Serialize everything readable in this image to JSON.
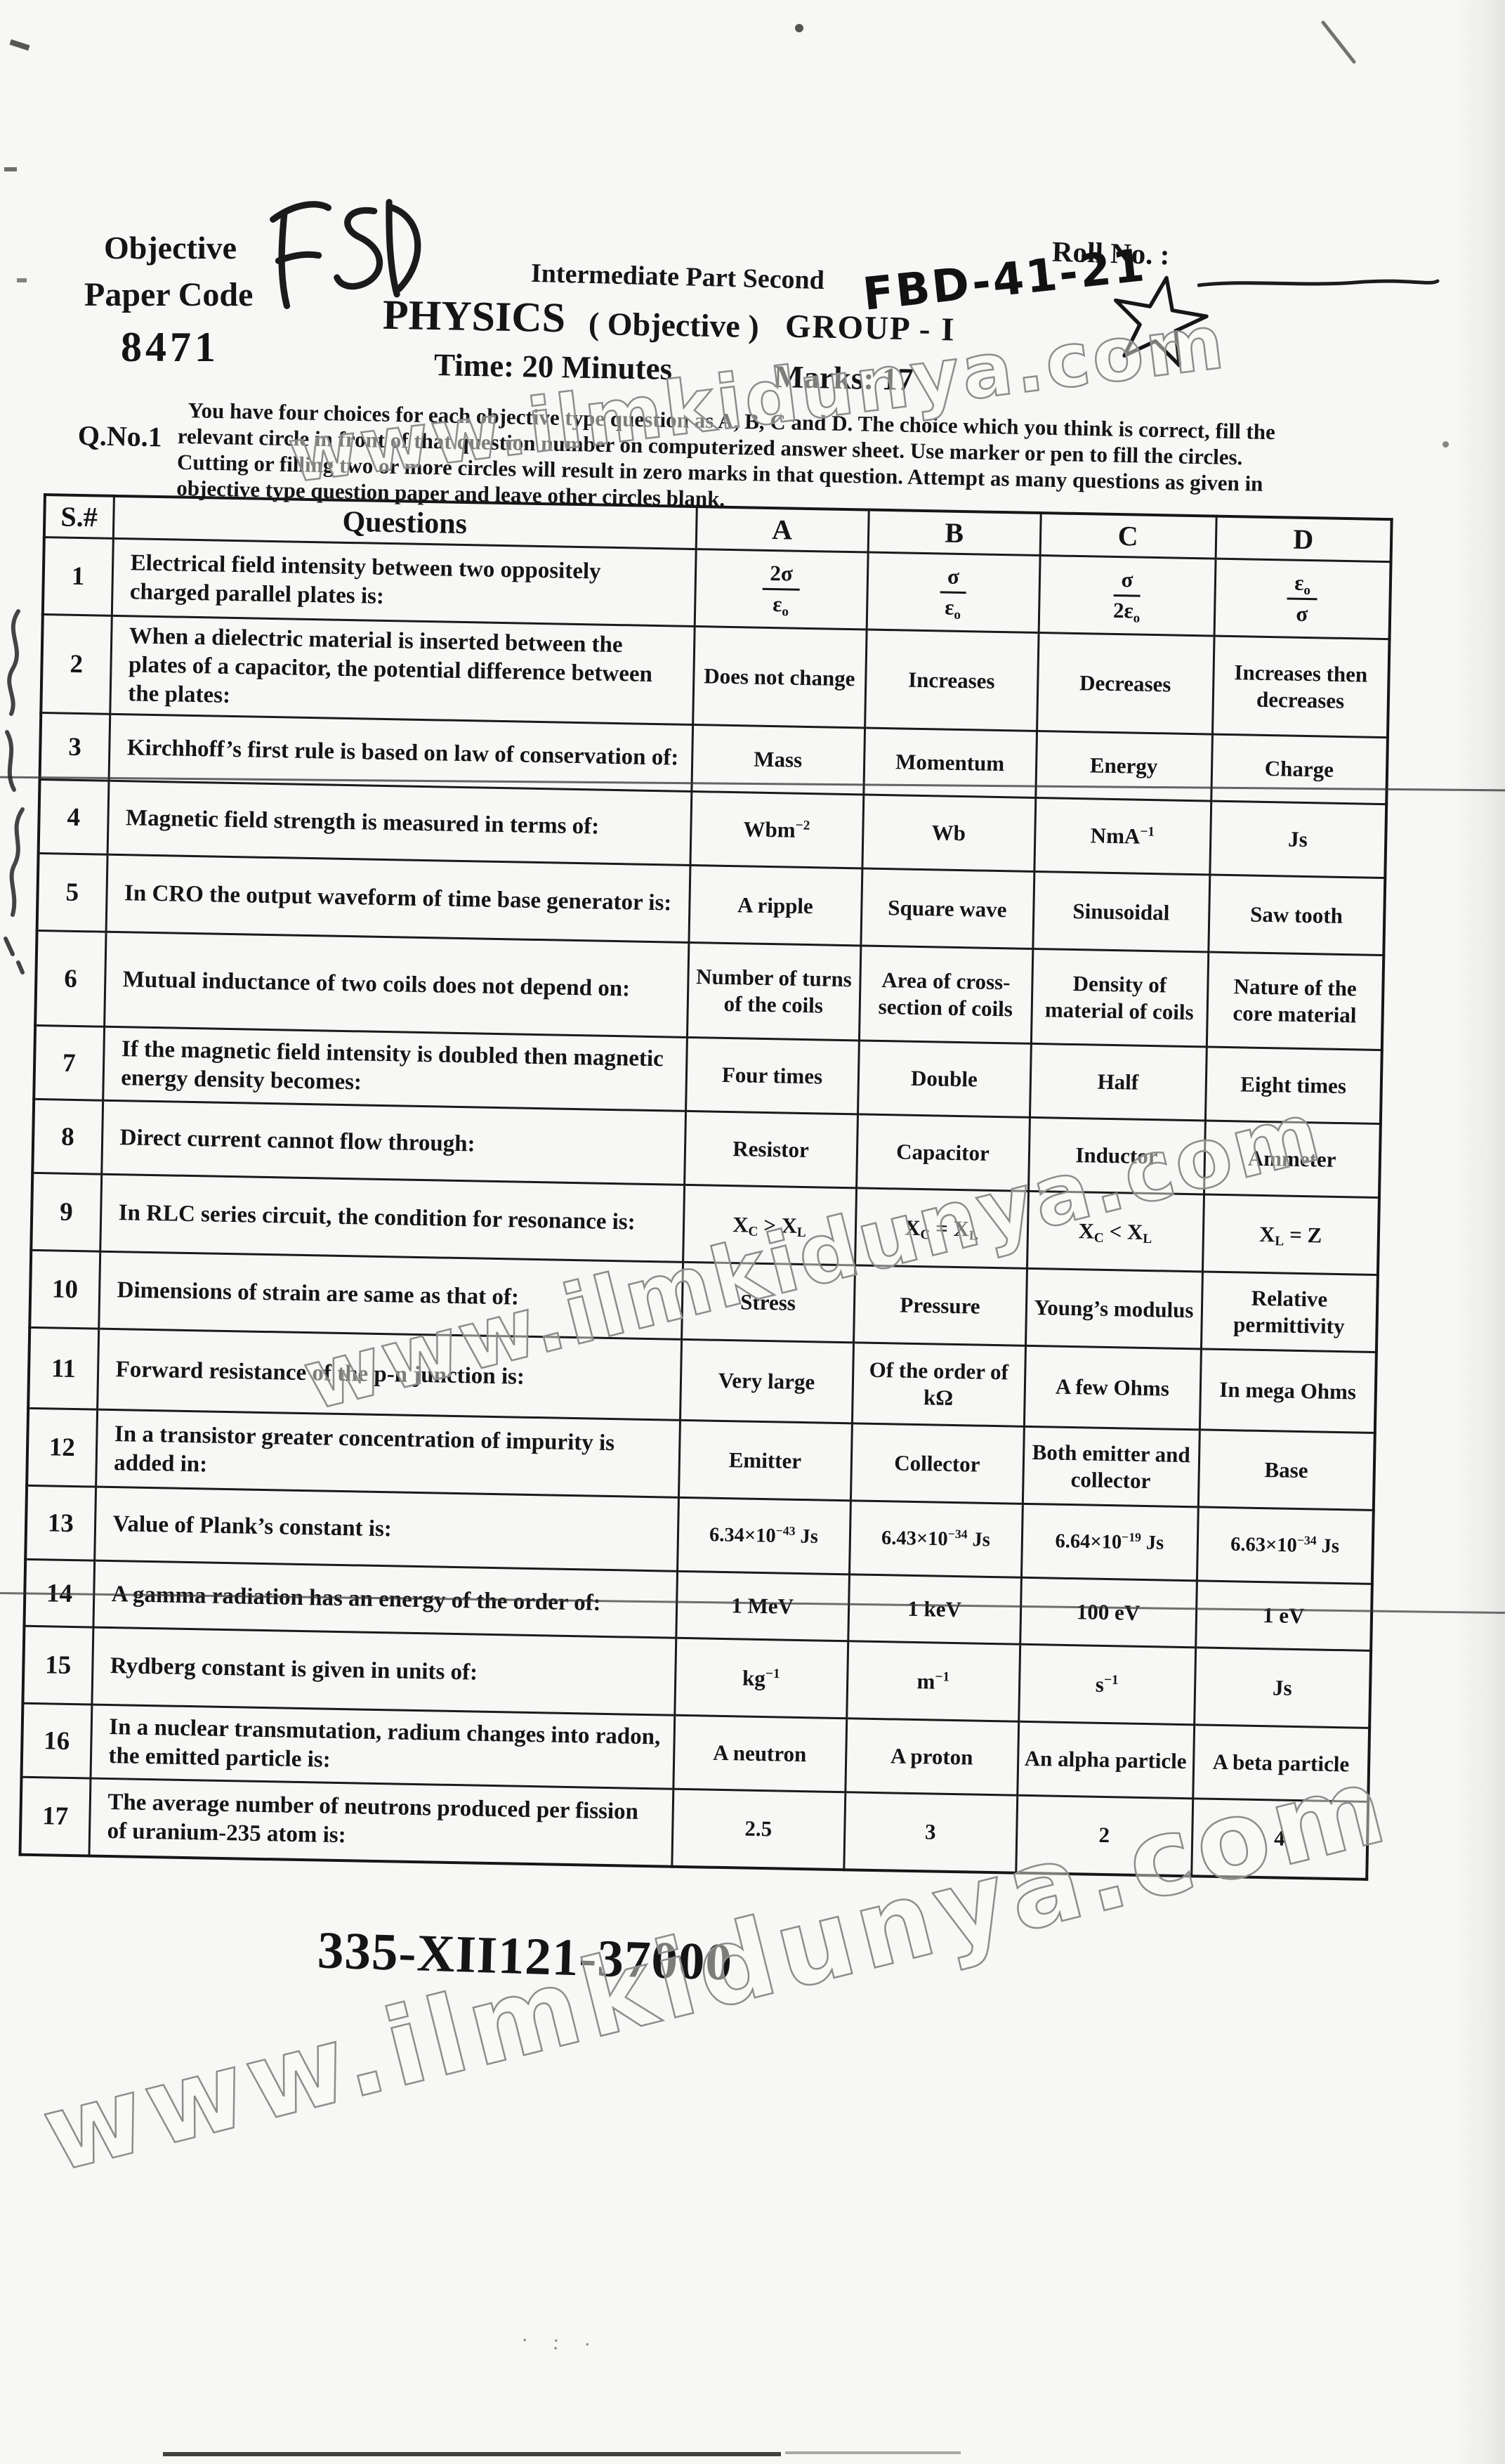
{
  "header": {
    "paper_type": "Objective",
    "paper_code_label": "Paper Code",
    "paper_code": "8471",
    "handwritten_region": "FSD",
    "exam_level": "Intermediate Part Second",
    "handwritten_code": "FBD-41-21",
    "roll_no_label": "Roll No. :",
    "subject": "PHYSICS",
    "subject_mode": "( Objective )",
    "group": "GROUP - I",
    "time": "Time: 20 Minutes",
    "marks": "Marks: 17"
  },
  "instructions": {
    "q_label": "Q.No.1",
    "lines": [
      "You have four choices for each objective type question as A, B, C and D. The choice which you think is correct, fill the",
      "relevant circle in front of that question number on computerized answer sheet.  Use marker or pen to fill the circles.",
      "Cutting or filling two or more circles will result in zero marks in that question.  Attempt as many questions as given in",
      "objective type question paper and leave other circles blank."
    ]
  },
  "table": {
    "headers": {
      "serial": "S.#",
      "questions": "Questions",
      "a": "A",
      "b": "B",
      "c": "C",
      "d": "D"
    },
    "rows": [
      {
        "no": "1",
        "q": "Electrical field intensity between two oppositely charged parallel plates is:",
        "type": "fraction",
        "options": [
          {
            "num": "2σ",
            "den": "ε~o~"
          },
          {
            "num": "σ",
            "den": "ε~o~"
          },
          {
            "num": "σ",
            "den": "2ε~o~"
          },
          {
            "num": "ε~o~",
            "den": "σ"
          }
        ]
      },
      {
        "no": "2",
        "q": "When a dielectric material is inserted between the plates of a capacitor, the potential difference between the plates:",
        "options": [
          "Does not change",
          "Increases",
          "Decreases",
          "Increases then decreases"
        ]
      },
      {
        "no": "3",
        "q": "Kirchhoff’s first rule is based on law of conservation of:",
        "options": [
          "Mass",
          "Momentum",
          "Energy",
          "Charge"
        ]
      },
      {
        "no": "4",
        "q": "Magnetic field strength is measured in terms of:",
        "options": [
          "Wbm^−2^",
          "Wb",
          "NmA^−1^",
          "Js"
        ]
      },
      {
        "no": "5",
        "q": "In CRO the output waveform of time base generator is:",
        "options": [
          "A ripple",
          "Square wave",
          "Sinusoidal",
          "Saw tooth"
        ]
      },
      {
        "no": "6",
        "q": "Mutual inductance of two coils does not depend on:",
        "options": [
          "Number of turns of the coils",
          "Area of cross-section of coils",
          "Density of material of coils",
          "Nature of the core material"
        ]
      },
      {
        "no": "7",
        "q": "If the magnetic field intensity is doubled then magnetic energy density becomes:",
        "options": [
          "Four times",
          "Double",
          "Half",
          "Eight times"
        ]
      },
      {
        "no": "8",
        "q": "Direct current cannot flow through:",
        "options": [
          "Resistor",
          "Capacitor",
          "Inductor",
          "Ammeter"
        ]
      },
      {
        "no": "9",
        "q": "In RLC series circuit, the condition for resonance is:",
        "options": [
          "X~C~ > X~L~",
          "X~C~ = X~L~",
          "X~C~ < X~L~",
          "X~L~ = Z"
        ]
      },
      {
        "no": "10",
        "q": "Dimensions of strain are same as that of:",
        "options": [
          "Stress",
          "Pressure",
          "Young’s modulus",
          "Relative permittivity"
        ]
      },
      {
        "no": "11",
        "q": "Forward resistance of the p-n junction is:",
        "options": [
          "Very large",
          "Of the order of kΩ",
          "A few Ohms",
          "In mega Ohms"
        ]
      },
      {
        "no": "12",
        "q": "In a transistor greater concentration of impurity is added in:",
        "options": [
          "Emitter",
          "Collector",
          "Both emitter and collector",
          "Base"
        ]
      },
      {
        "no": "13",
        "q": "Value of Plank’s constant is:",
        "options": [
          "6.34×10^−43^ Js",
          "6.43×10^−34^ Js",
          "6.64×10^−19^ Js",
          "6.63×10^−34^ Js"
        ]
      },
      {
        "no": "14",
        "q": "A gamma radiation has an energy of the order of:",
        "options": [
          "1 MeV",
          "1 keV",
          "100 eV",
          "1 eV"
        ]
      },
      {
        "no": "15",
        "q": "Rydberg constant is given in units of:",
        "options": [
          "kg^−1^",
          "m^−1^",
          "s^−1^",
          "Js"
        ]
      },
      {
        "no": "16",
        "q": "In a nuclear transmutation, radium changes into radon, the emitted particle is:",
        "options": [
          "A neutron",
          "A proton",
          "An alpha particle",
          "A beta particle"
        ]
      },
      {
        "no": "17",
        "q": "The average number of neutrons produced per fission of uranium-235 atom is:",
        "options": [
          "2.5",
          "3",
          "2",
          "4"
        ]
      }
    ]
  },
  "footer": {
    "print_code": "335-XII121-37000"
  },
  "watermark": {
    "text": "www.ilmkidunya.com"
  }
}
